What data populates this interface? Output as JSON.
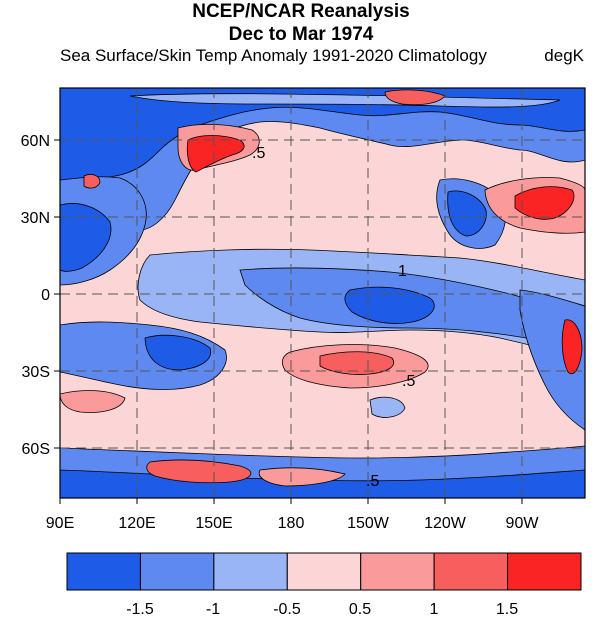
{
  "title": {
    "line1": "NCEP/NCAR Reanalysis",
    "line2": "Dec to Mar 1974"
  },
  "subtitle": {
    "left": "Sea Surface/Skin Temp Anomaly  1991-2020 Climatology",
    "right": "degK"
  },
  "map": {
    "lon_ticks": [
      "90E",
      "120E",
      "150E",
      "180",
      "150W",
      "120W",
      "90W"
    ],
    "lat_ticks": [
      "60N",
      "30N",
      "0",
      "30S",
      "60S"
    ],
    "contour_labels": [
      ".5",
      ".5",
      ".5",
      "1"
    ]
  },
  "colorbar": {
    "colors": [
      "#1e5ce8",
      "#5d89f0",
      "#9ab5f6",
      "#fcd6d6",
      "#fb9a9a",
      "#f75e5e",
      "#fb2424"
    ],
    "labels": [
      "-1.5",
      "-1",
      "-0.5",
      "0.5",
      "1",
      "1.5"
    ]
  },
  "colors": {
    "strong_cold": "#1e5ce8",
    "mid_cold": "#5d89f0",
    "weak_cold": "#9ab5f6",
    "weak_warm": "#fcd6d6",
    "mid_warm": "#fb9a9a",
    "strong_warm": "#fb2424"
  }
}
